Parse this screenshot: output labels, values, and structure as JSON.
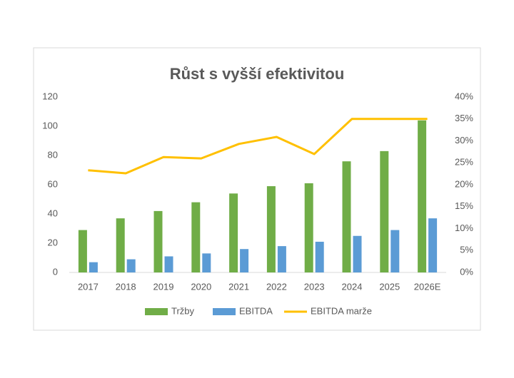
{
  "chart_data": {
    "type": "bar",
    "title": "Růst s vyšší efektivitou",
    "categories": [
      "2017",
      "2018",
      "2019",
      "2020",
      "2021",
      "2022",
      "2023",
      "2024",
      "2025",
      "2026E"
    ],
    "series": [
      {
        "name": "Tržby",
        "color": "#70ad47",
        "type": "bar",
        "values": [
          29,
          37,
          42,
          48,
          54,
          59,
          61,
          76,
          83,
          104
        ]
      },
      {
        "name": "EBITDA",
        "color": "#5b9bd5",
        "type": "bar",
        "values": [
          7,
          9,
          11,
          13,
          16,
          18,
          21,
          25,
          29,
          37
        ]
      },
      {
        "name": "EBITDA marže",
        "color": "#ffc000",
        "type": "line",
        "axis": "y2",
        "values": [
          23.3,
          22.6,
          26.3,
          26,
          29.3,
          30.9,
          27,
          35,
          35,
          35
        ]
      }
    ],
    "ylim": [
      0,
      120
    ],
    "yticks": [
      0,
      20,
      40,
      60,
      80,
      100,
      120
    ],
    "y2lim": [
      0,
      40
    ],
    "y2ticks": [
      {
        "value": 0,
        "label": "0%"
      },
      {
        "value": 5,
        "label": "5%"
      },
      {
        "value": 10,
        "label": "10%"
      },
      {
        "value": 15,
        "label": "15%"
      },
      {
        "value": 20,
        "label": "20%"
      },
      {
        "value": 25,
        "label": "25%"
      },
      {
        "value": 30,
        "label": "30%"
      },
      {
        "value": 35,
        "label": "35%"
      },
      {
        "value": 40,
        "label": "40%"
      }
    ],
    "grid": false,
    "legend": "bottom"
  }
}
